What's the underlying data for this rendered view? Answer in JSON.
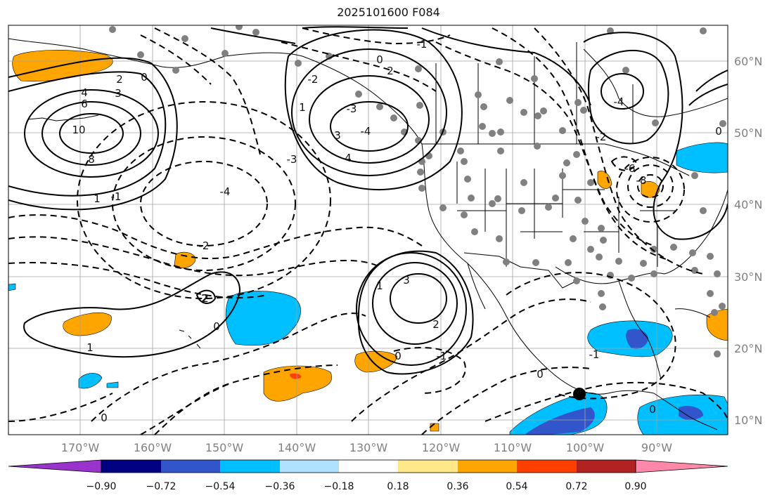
{
  "title": "2025101600 F084",
  "map": {
    "lon_labels": [
      "170°W",
      "160°W",
      "150°W",
      "140°W",
      "130°W",
      "120°W",
      "110°W",
      "100°W",
      "90°W"
    ],
    "lat_labels": [
      "60°N",
      "50°N",
      "40°N",
      "30°N",
      "20°N",
      "10°N"
    ],
    "contour_labels": [
      "10",
      "8",
      "6",
      "4",
      "3",
      "2",
      "1",
      "0",
      "-1",
      "-2",
      "-3",
      "-4",
      "0",
      "-1",
      "-2",
      "2",
      "1",
      "0",
      "-2",
      "-3",
      "-4",
      "4",
      "3",
      "2",
      "1",
      "0",
      "-1",
      "3",
      "2",
      "1",
      "0",
      "-1",
      "0",
      "0",
      "-8",
      "-6",
      "-4",
      "-2",
      "0"
    ],
    "colors": {
      "purple": "#9933cc",
      "navy": "#000080",
      "blue": "#3355cc",
      "cyan": "#00bfff",
      "lightcyan": "#b0e0ff",
      "white": "#ffffff",
      "yellow": "#ffe88a",
      "orange": "#ffa500",
      "orangered": "#ff3f00",
      "firebrick": "#b22222",
      "pink": "#ff88aa"
    }
  },
  "colorbar": {
    "ticks": [
      "−0.90",
      "−0.72",
      "−0.54",
      "−0.36",
      "−0.18",
      "0.18",
      "0.36",
      "0.54",
      "0.72",
      "0.90"
    ],
    "segments": [
      "#9933cc",
      "#000080",
      "#3355cc",
      "#00bfff",
      "#b0e0ff",
      "#ffffff",
      "#ffe88a",
      "#ffa500",
      "#ff3f00",
      "#b22222",
      "#ff88aa"
    ]
  }
}
